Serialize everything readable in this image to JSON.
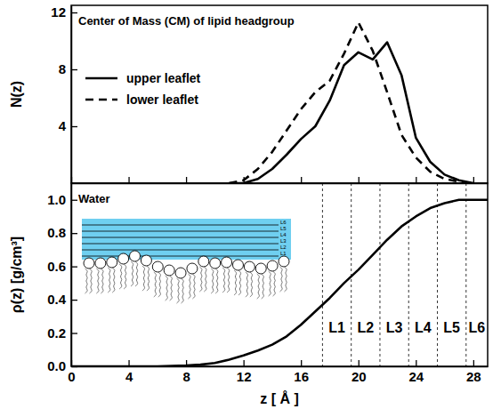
{
  "chart_data": [
    {
      "type": "line",
      "title": "Center of Mass (CM) of lipid headgroup",
      "y_label": "N(z)",
      "x": [
        11,
        12,
        13,
        14,
        15,
        16,
        17,
        18,
        19,
        20,
        21,
        22,
        23,
        24,
        25,
        26,
        27,
        28
      ],
      "series": [
        {
          "name": "upper leaflet",
          "color": "#000000",
          "line_style": "solid",
          "values": [
            0,
            0,
            0.3,
            1,
            2,
            3.1,
            4,
            5.8,
            8.3,
            9.2,
            8.7,
            9.9,
            7.6,
            3.2,
            1.5,
            0.6,
            0.2,
            0
          ]
        },
        {
          "name": "lower leaflet",
          "color": "#000000",
          "line_style": "dashed",
          "values": [
            0,
            0.2,
            1,
            2.2,
            3.7,
            5.2,
            6.4,
            7.2,
            9.1,
            11.3,
            9.3,
            6.4,
            3.4,
            1.8,
            0.8,
            0.3,
            0.1,
            0
          ]
        }
      ],
      "xlim": [
        0,
        29
      ],
      "xticks": [
        0,
        4,
        8,
        12,
        16,
        20,
        24,
        28
      ],
      "ylim": [
        0,
        12.5
      ],
      "yticks": [
        4,
        8,
        12
      ],
      "tick_labels": "y",
      "legend": "upper left"
    },
    {
      "type": "line",
      "title": "Water",
      "x_label": "z [ Å ]",
      "y_label": "ρ(z) [g/cm³]",
      "x": [
        0,
        1,
        2,
        3,
        4,
        5,
        6,
        7,
        8,
        9,
        10,
        11,
        12,
        13,
        14,
        15,
        16,
        17,
        18,
        19,
        20,
        21,
        22,
        23,
        24,
        25,
        26,
        27,
        28,
        29
      ],
      "values": [
        0,
        0,
        0,
        0,
        0,
        0,
        0,
        0.002,
        0.005,
        0.01,
        0.02,
        0.04,
        0.065,
        0.095,
        0.13,
        0.18,
        0.25,
        0.33,
        0.41,
        0.5,
        0.58,
        0.67,
        0.76,
        0.84,
        0.9,
        0.95,
        0.98,
        1.0,
        1.0,
        1.0
      ],
      "color": "#000000",
      "xlim": [
        0,
        29
      ],
      "xticks": [
        0,
        4,
        8,
        12,
        16,
        20,
        24,
        28
      ],
      "ylim": [
        0,
        1.1
      ],
      "yticks": [
        {
          "value": 0,
          "label": "0.0"
        },
        0.2,
        0.4,
        0.6,
        0.8,
        {
          "value": 1,
          "label": "1.0"
        }
      ],
      "layers": {
        "boundaries": [
          17.5,
          19.5,
          21.5,
          23.5,
          25.5,
          27.5
        ],
        "labels": [
          "L1",
          "L2",
          "L3",
          "L4",
          "L5",
          "L6"
        ]
      }
    }
  ]
}
